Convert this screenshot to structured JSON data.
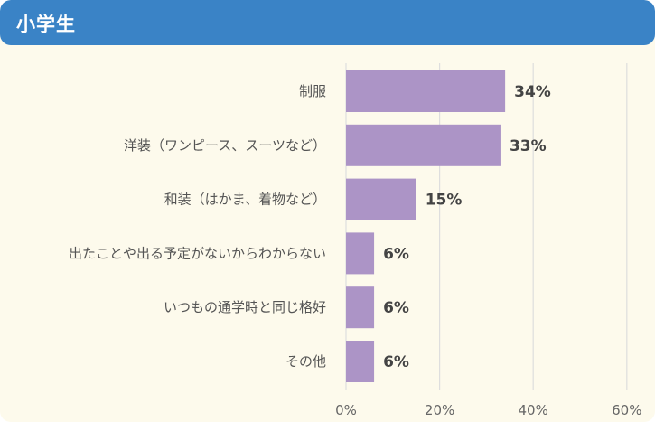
{
  "header": {
    "title": "小学生"
  },
  "colors": {
    "header_bg": "#3a83c6",
    "panel_bg": "#fdfaec",
    "bar": "#ac94c6",
    "grid": "#dedede"
  },
  "chart_data": {
    "type": "bar",
    "orientation": "horizontal",
    "title": "小学生",
    "categories": [
      "制服",
      "洋装（ワンピース、スーツなど）",
      "和装（はかま、着物など）",
      "出たことや出る予定がないからわからない",
      "いつもの通学時と同じ格好",
      "その他"
    ],
    "values": [
      34,
      33,
      15,
      6,
      6,
      6
    ],
    "value_labels": [
      "34%",
      "33%",
      "15%",
      "6%",
      "6%",
      "6%"
    ],
    "xlim": [
      0,
      60
    ],
    "x_ticks": [
      "0%",
      "20%",
      "40%",
      "60%"
    ],
    "grid": true
  }
}
